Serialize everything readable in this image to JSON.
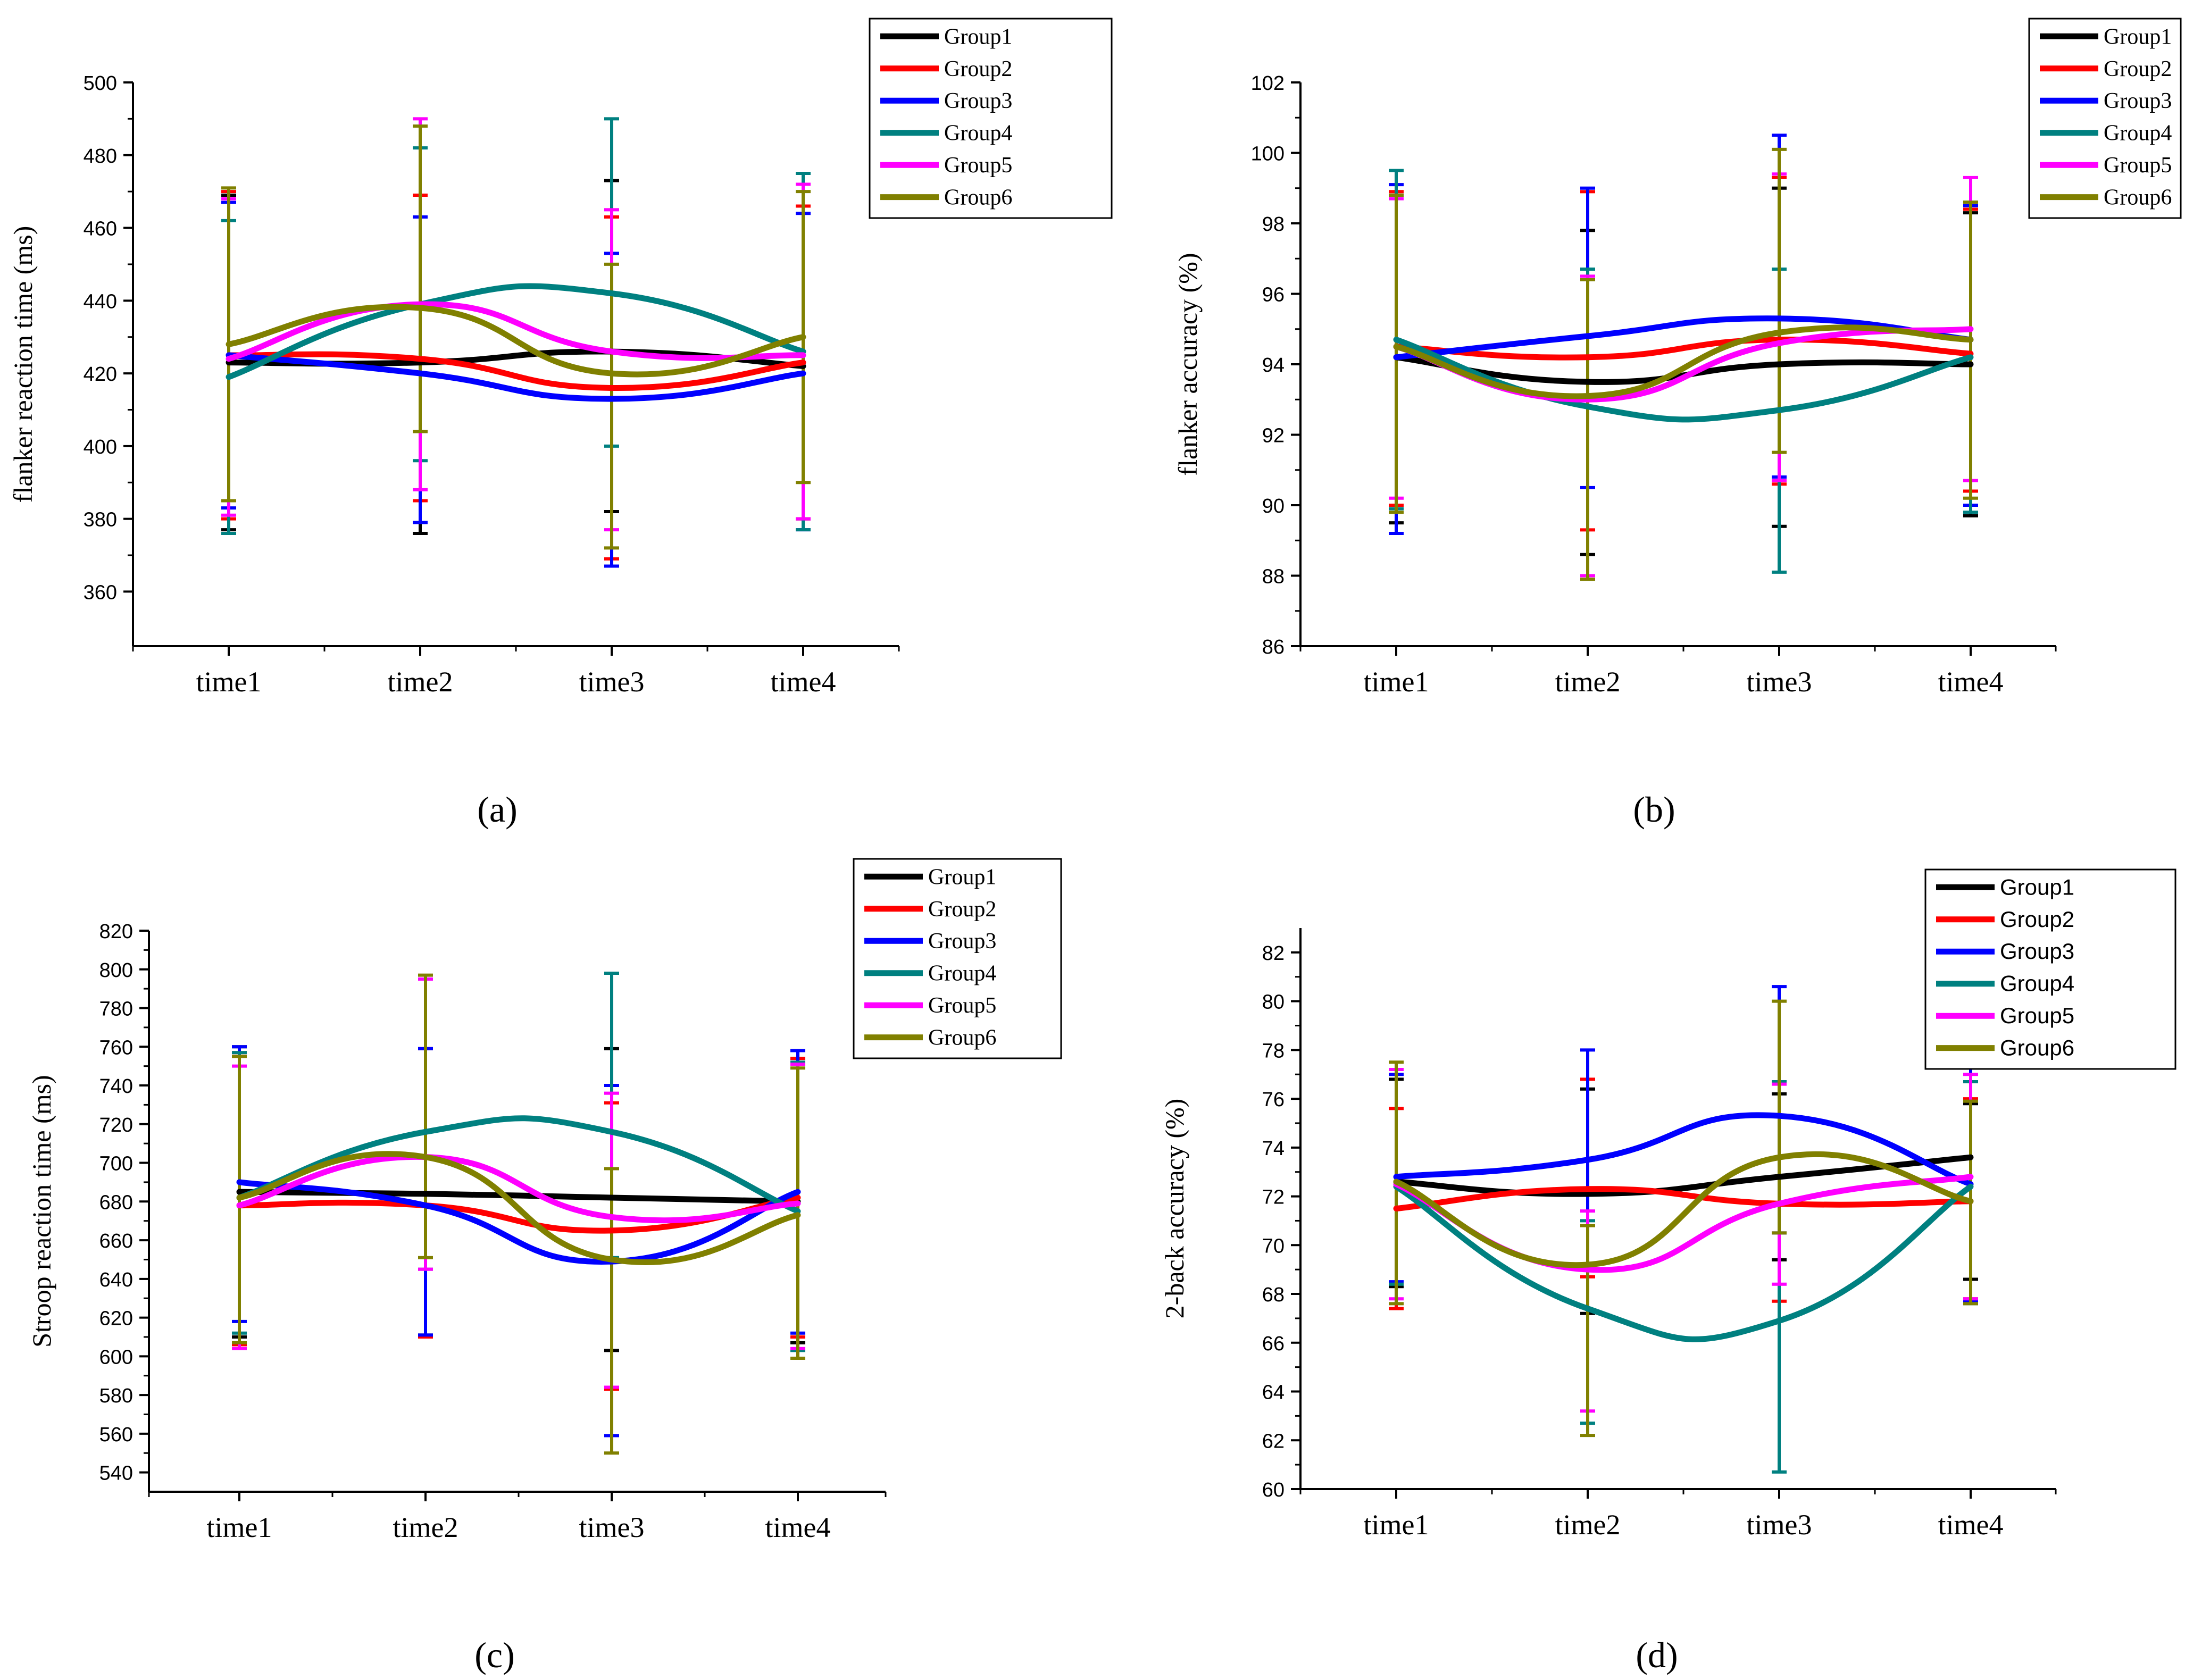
{
  "chart_data": [
    {
      "type": "line",
      "panel_label": "(a)",
      "title": "",
      "xlabel": "",
      "ylabel": "flanker reaction time (ms)",
      "categories": [
        "time1",
        "time2",
        "time3",
        "time4"
      ],
      "ylim": [
        345,
        500
      ],
      "yticks": [
        360,
        380,
        400,
        420,
        440,
        460,
        480,
        500
      ],
      "ytick_labels": [
        "360",
        "380",
        "400",
        "420",
        "440",
        "460",
        "480",
        "500"
      ],
      "grid": false,
      "legend_position": "top-right",
      "legend_font": "serif",
      "series": [
        {
          "name": "Group1",
          "values": [
            423,
            423,
            426,
            422
          ],
          "err_low": [
            377,
            376,
            382,
            380
          ],
          "err_high": [
            469,
            469,
            473,
            466
          ]
        },
        {
          "name": "Group2",
          "values": [
            425,
            424,
            416,
            423
          ],
          "err_low": [
            380,
            385,
            369,
            380
          ],
          "err_high": [
            470,
            469,
            463,
            466
          ]
        },
        {
          "name": "Group3",
          "values": [
            425,
            420,
            413,
            420
          ],
          "err_low": [
            383,
            379,
            367,
            377
          ],
          "err_high": [
            467,
            463,
            453,
            464
          ]
        },
        {
          "name": "Group4",
          "values": [
            419,
            439,
            442,
            426
          ],
          "err_low": [
            376,
            396,
            400,
            377
          ],
          "err_high": [
            462,
            482,
            490,
            475
          ]
        },
        {
          "name": "Group5",
          "values": [
            424,
            439,
            426,
            425
          ],
          "err_low": [
            381,
            388,
            377,
            380
          ],
          "err_high": [
            468,
            490,
            465,
            472
          ]
        },
        {
          "name": "Group6",
          "values": [
            428,
            438,
            420,
            430
          ],
          "err_low": [
            385,
            404,
            372,
            390
          ],
          "err_high": [
            471,
            488,
            450,
            470
          ]
        }
      ]
    },
    {
      "type": "line",
      "panel_label": "(b)",
      "title": "",
      "xlabel": "",
      "ylabel": "flanker accuracy (%)",
      "categories": [
        "time1",
        "time2",
        "time3",
        "time4"
      ],
      "ylim": [
        86,
        102
      ],
      "yticks": [
        86,
        88,
        90,
        92,
        94,
        96,
        98,
        100,
        102
      ],
      "ytick_labels": [
        "86",
        "88",
        "90",
        "92",
        "94",
        "96",
        "98",
        "100",
        "102"
      ],
      "grid": false,
      "legend_position": "top-right",
      "legend_font": "serif",
      "series": [
        {
          "name": "Group1",
          "values": [
            94.2,
            93.5,
            94.0,
            94.0
          ],
          "err_low": [
            89.5,
            88.6,
            89.4,
            89.7
          ],
          "err_high": [
            98.9,
            97.8,
            99.0,
            98.3
          ]
        },
        {
          "name": "Group2",
          "values": [
            94.5,
            94.2,
            94.7,
            94.3
          ],
          "err_low": [
            90.0,
            89.3,
            90.6,
            90.4
          ],
          "err_high": [
            98.9,
            98.9,
            99.3,
            98.4
          ]
        },
        {
          "name": "Group3",
          "values": [
            94.2,
            94.8,
            95.3,
            94.7
          ],
          "err_low": [
            89.2,
            90.5,
            90.8,
            90.0
          ],
          "err_high": [
            99.1,
            99.0,
            100.5,
            98.5
          ]
        },
        {
          "name": "Group4",
          "values": [
            94.7,
            92.8,
            92.7,
            94.2
          ],
          "err_low": [
            89.9,
            88.0,
            88.1,
            89.8
          ],
          "err_high": [
            99.5,
            96.7,
            96.7,
            98.6
          ]
        },
        {
          "name": "Group5",
          "values": [
            94.5,
            93.0,
            94.6,
            95.0
          ],
          "err_low": [
            90.2,
            88.0,
            90.7,
            90.7
          ],
          "err_high": [
            98.7,
            96.5,
            99.4,
            99.3
          ]
        },
        {
          "name": "Group6",
          "values": [
            94.5,
            93.1,
            94.9,
            94.7
          ],
          "err_low": [
            89.8,
            87.9,
            91.5,
            90.2
          ],
          "err_high": [
            98.8,
            96.4,
            100.1,
            98.6
          ]
        }
      ]
    },
    {
      "type": "line",
      "panel_label": "(c)",
      "title": "",
      "xlabel": "",
      "ylabel": "Stroop reaction time (ms)",
      "categories": [
        "time1",
        "time2",
        "time3",
        "time4"
      ],
      "ylim": [
        530,
        820
      ],
      "yticks": [
        540,
        560,
        580,
        600,
        620,
        640,
        660,
        680,
        700,
        720,
        740,
        760,
        780,
        800,
        820
      ],
      "ytick_labels": [
        "540",
        "560",
        "580",
        "600",
        "620",
        "640",
        "660",
        "680",
        "700",
        "720",
        "740",
        "760",
        "780",
        "800",
        "820"
      ],
      "grid": false,
      "legend_position": "top-right",
      "legend_font": "serif",
      "series": [
        {
          "name": "Group1",
          "values": [
            685,
            684,
            682,
            680
          ],
          "err_low": [
            610,
            611,
            603,
            607
          ],
          "err_high": [
            760,
            759,
            759,
            752
          ]
        },
        {
          "name": "Group2",
          "values": [
            678,
            678,
            665,
            682
          ],
          "err_low": [
            606,
            610,
            583,
            610
          ],
          "err_high": [
            757,
            759,
            731,
            754
          ]
        },
        {
          "name": "Group3",
          "values": [
            690,
            678,
            649,
            685
          ],
          "err_low": [
            618,
            611,
            559,
            612
          ],
          "err_high": [
            760,
            759,
            740,
            758
          ]
        },
        {
          "name": "Group4",
          "values": [
            682,
            716,
            716,
            675
          ],
          "err_low": [
            612,
            645,
            651,
            603
          ],
          "err_high": [
            757,
            795,
            798,
            752
          ]
        },
        {
          "name": "Group5",
          "values": [
            678,
            703,
            672,
            679
          ],
          "err_low": [
            604,
            645,
            584,
            604
          ],
          "err_high": [
            750,
            795,
            736,
            751
          ]
        },
        {
          "name": "Group6",
          "values": [
            682,
            703,
            650,
            673
          ],
          "err_low": [
            607,
            651,
            550,
            599
          ],
          "err_high": [
            755,
            797,
            697,
            749
          ]
        }
      ]
    },
    {
      "type": "line",
      "panel_label": "(d)",
      "title": "",
      "xlabel": "",
      "ylabel": "2-back accuracy (%)",
      "categories": [
        "time1",
        "time2",
        "time3",
        "time4"
      ],
      "ylim": [
        60,
        83
      ],
      "yticks": [
        60,
        62,
        64,
        66,
        68,
        70,
        72,
        74,
        76,
        78,
        80,
        82
      ],
      "ytick_labels": [
        "60",
        "62",
        "64",
        "66",
        "68",
        "70",
        "72",
        "74",
        "76",
        "78",
        "80",
        "82"
      ],
      "grid": false,
      "legend_position": "top-right",
      "legend_font": "sans",
      "series": [
        {
          "name": "Group1",
          "values": [
            72.6,
            72.1,
            72.8,
            73.6
          ],
          "err_low": [
            68.3,
            67.2,
            69.4,
            68.6
          ],
          "err_high": [
            76.8,
            76.4,
            76.2,
            75.8
          ]
        },
        {
          "name": "Group2",
          "values": [
            71.5,
            72.3,
            71.7,
            71.8
          ],
          "err_low": [
            67.4,
            68.7,
            67.7,
            67.8
          ],
          "err_high": [
            75.6,
            76.8,
            75.3,
            76.0
          ]
        },
        {
          "name": "Group3",
          "values": [
            72.8,
            73.5,
            75.3,
            72.5
          ],
          "err_low": [
            68.5,
            69.0,
            70.5,
            67.7
          ],
          "err_high": [
            77.0,
            78.0,
            80.6,
            77.3
          ]
        },
        {
          "name": "Group4",
          "values": [
            72.4,
            67.4,
            66.9,
            72.4
          ],
          "err_low": [
            68.4,
            62.7,
            60.7,
            67.6
          ],
          "err_high": [
            77.2,
            71.0,
            76.7,
            76.7
          ]
        },
        {
          "name": "Group5",
          "values": [
            72.5,
            69.0,
            71.7,
            72.8
          ],
          "err_low": [
            67.8,
            63.2,
            68.4,
            67.8
          ],
          "err_high": [
            77.2,
            71.4,
            76.6,
            77.0
          ]
        },
        {
          "name": "Group6",
          "values": [
            72.6,
            69.2,
            73.6,
            71.8
          ],
          "err_low": [
            67.6,
            62.2,
            70.5,
            67.6
          ],
          "err_high": [
            77.5,
            70.8,
            80.0,
            75.9
          ]
        }
      ]
    }
  ],
  "series_colors": {
    "Group1": "#000000",
    "Group2": "#ff0000",
    "Group3": "#0000ff",
    "Group4": "#008080",
    "Group5": "#ff00ff",
    "Group6": "#808000"
  }
}
